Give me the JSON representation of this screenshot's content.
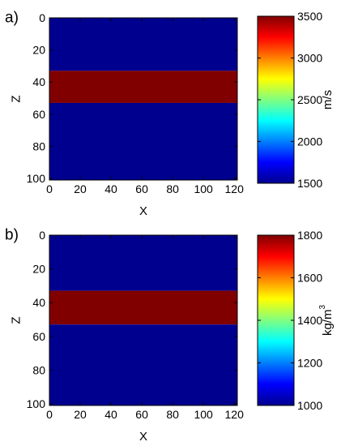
{
  "chart_data": [
    {
      "type": "heatmap",
      "panel_label": "a)",
      "xlabel": "X",
      "ylabel": "Z",
      "xlim": [
        0,
        122
      ],
      "ylim": [
        0,
        101
      ],
      "y_inverted": true,
      "x_ticks": [
        "0",
        "20",
        "40",
        "60",
        "80",
        "100",
        "120"
      ],
      "y_ticks": [
        "0",
        "20",
        "40",
        "60",
        "80",
        "100"
      ],
      "layers": [
        {
          "z_top": 0,
          "z_bottom": 33,
          "value": 1500
        },
        {
          "z_top": 33,
          "z_bottom": 53,
          "value": 3500
        },
        {
          "z_top": 53,
          "z_bottom": 101,
          "value": 1500
        }
      ],
      "colorbar": {
        "min": 1500,
        "max": 3500,
        "ticks": [
          "1500",
          "2000",
          "2500",
          "3000",
          "3500"
        ],
        "label": "m/s",
        "colormap": "jet"
      }
    },
    {
      "type": "heatmap",
      "panel_label": "b)",
      "xlabel": "X",
      "ylabel": "Z",
      "xlim": [
        0,
        122
      ],
      "ylim": [
        0,
        101
      ],
      "y_inverted": true,
      "x_ticks": [
        "0",
        "20",
        "40",
        "60",
        "80",
        "100",
        "120"
      ],
      "y_ticks": [
        "0",
        "20",
        "40",
        "60",
        "80",
        "100"
      ],
      "layers": [
        {
          "z_top": 0,
          "z_bottom": 33,
          "value": 1000
        },
        {
          "z_top": 33,
          "z_bottom": 53,
          "value": 1800
        },
        {
          "z_top": 53,
          "z_bottom": 101,
          "value": 1000
        }
      ],
      "colorbar": {
        "min": 1000,
        "max": 1800,
        "ticks": [
          "1000",
          "1200",
          "1400",
          "1600",
          "1800"
        ],
        "label": "kg/m",
        "label_superscript": "3",
        "colormap": "jet"
      }
    }
  ]
}
